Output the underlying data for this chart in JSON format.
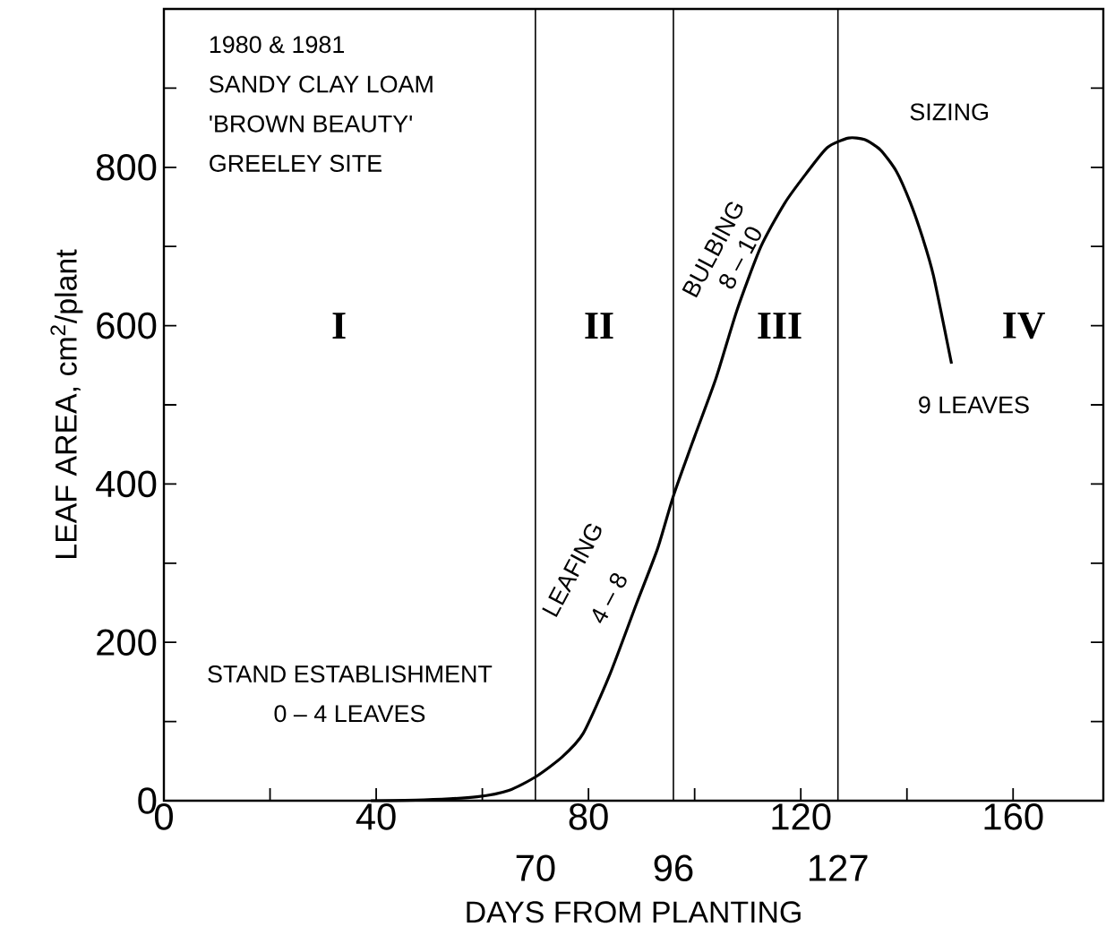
{
  "chart_data": {
    "type": "line",
    "xlabel": "DAYS FROM PLANTING",
    "ylabel": "LEAF AREA, cm$^{2}$/plant",
    "xlim": [
      0,
      177
    ],
    "ylim": [
      0,
      1000
    ],
    "xticks": [
      0,
      {
        "value": 20,
        "label": null
      },
      40,
      {
        "value": 60,
        "label": null
      },
      80,
      {
        "value": 100,
        "label": null
      },
      120,
      {
        "value": 140,
        "label": null
      },
      160
    ],
    "yticks": [
      0,
      {
        "value": 100,
        "label": null
      },
      200,
      {
        "value": 300,
        "label": null
      },
      400,
      {
        "value": 500,
        "label": null
      },
      600,
      {
        "value": 700,
        "label": null
      },
      800,
      {
        "value": 900,
        "label": null
      }
    ],
    "series": [
      {
        "color": "#000000",
        "x": [
          39,
          49,
          59,
          65,
          70,
          75,
          79,
          84,
          89,
          93,
          96,
          100,
          104,
          108,
          112.5,
          117,
          121,
          125,
          129,
          132,
          135,
          138,
          140.6,
          143,
          145,
          148.4
        ],
        "values": [
          0,
          1,
          5,
          13,
          30,
          55,
          85,
          159,
          248,
          318,
          385,
          460,
          533,
          620,
          700,
          755,
          792,
          825,
          837,
          835,
          822,
          795,
          756,
          710,
          663,
          552
        ]
      }
    ],
    "ref_lines": [
      {
        "axis": "x",
        "value": 70,
        "label": "70"
      },
      {
        "axis": "x",
        "value": 96,
        "label": "96"
      },
      {
        "axis": "x",
        "value": 127,
        "label": "127"
      }
    ],
    "annotations": [
      "1980 & 1981",
      "SANDY CLAY LOAM",
      "'BROWN BEAUTY'",
      "GREELEY SITE",
      "SIZING",
      "I",
      "II",
      "III",
      "IV",
      "STAND ESTABLISHMENT",
      "0 – 4 LEAVES",
      "LEAFING",
      "4 – 8",
      "BULBING",
      "8 – 10",
      "9 LEAVES"
    ]
  }
}
